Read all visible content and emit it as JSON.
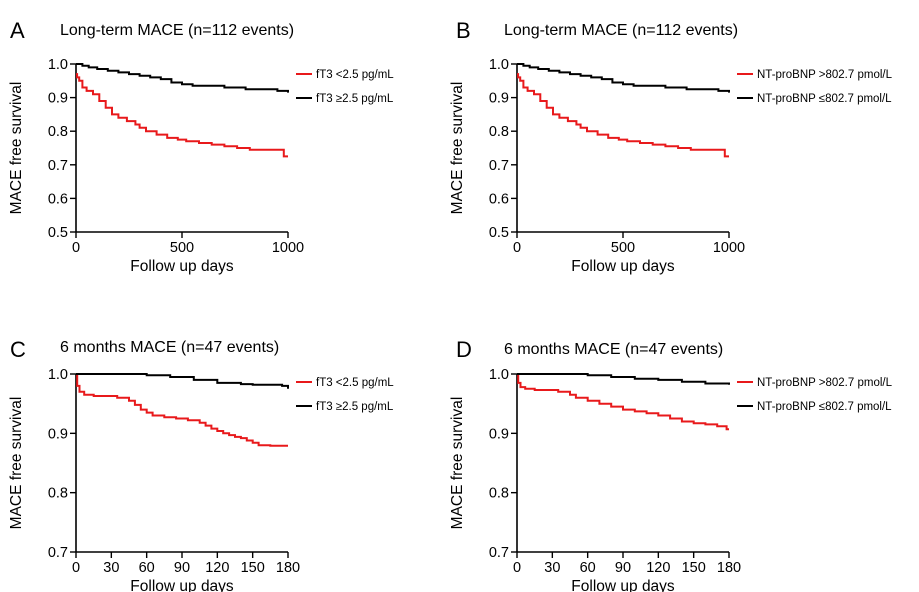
{
  "figure": {
    "series_colors": {
      "red": "#e8191b",
      "black": "#000000"
    }
  },
  "chart_data": [
    {
      "panel": "A",
      "type": "line",
      "step": true,
      "title": "Long-term MACE (n=112 events)",
      "xlabel": "Follow up days",
      "ylabel": "MACE free survival",
      "xlim": [
        0,
        1000
      ],
      "ylim": [
        0.5,
        1.0
      ],
      "xticks": [
        0,
        500,
        1000
      ],
      "yticks": [
        0.5,
        0.6,
        0.7,
        0.8,
        0.9,
        1.0
      ],
      "ytick_labels": [
        "0.5",
        "0.6",
        "0.7",
        "0.8",
        "0.9",
        "1.0"
      ],
      "legend_position": "top-right",
      "series": [
        {
          "name": "fT3 <2.5 pg/mL",
          "color": "#e8191b",
          "x": [
            0,
            5,
            15,
            30,
            50,
            80,
            110,
            140,
            170,
            200,
            240,
            280,
            300,
            330,
            380,
            430,
            480,
            520,
            580,
            640,
            700,
            760,
            820,
            870,
            920,
            960,
            980,
            1000
          ],
          "y": [
            0.97,
            0.96,
            0.95,
            0.93,
            0.92,
            0.91,
            0.89,
            0.87,
            0.85,
            0.84,
            0.83,
            0.82,
            0.81,
            0.8,
            0.79,
            0.78,
            0.775,
            0.77,
            0.765,
            0.76,
            0.755,
            0.75,
            0.745,
            0.745,
            0.745,
            0.745,
            0.725,
            0.725
          ]
        },
        {
          "name": "fT3 ≥2.5 pg/mL",
          "color": "#000000",
          "x": [
            0,
            30,
            60,
            100,
            150,
            200,
            250,
            300,
            350,
            400,
            450,
            500,
            550,
            600,
            700,
            800,
            900,
            950,
            1000
          ],
          "y": [
            1.0,
            0.995,
            0.99,
            0.985,
            0.98,
            0.975,
            0.97,
            0.965,
            0.96,
            0.955,
            0.945,
            0.94,
            0.935,
            0.935,
            0.93,
            0.925,
            0.925,
            0.92,
            0.915
          ]
        }
      ]
    },
    {
      "panel": "B",
      "type": "line",
      "step": true,
      "title": "Long-term MACE (n=112 events)",
      "xlabel": "Follow up days",
      "ylabel": "MACE free survival",
      "xlim": [
        0,
        1000
      ],
      "ylim": [
        0.5,
        1.0
      ],
      "xticks": [
        0,
        500,
        1000
      ],
      "yticks": [
        0.5,
        0.6,
        0.7,
        0.8,
        0.9,
        1.0
      ],
      "ytick_labels": [
        "0.5",
        "0.6",
        "0.7",
        "0.8",
        "0.9",
        "1.0"
      ],
      "legend_position": "top-right",
      "series": [
        {
          "name": "NT-proBNP >802.7 pmol/L",
          "color": "#e8191b",
          "x": [
            0,
            5,
            15,
            30,
            50,
            80,
            110,
            140,
            170,
            200,
            240,
            280,
            300,
            330,
            380,
            430,
            480,
            520,
            580,
            640,
            700,
            760,
            820,
            870,
            920,
            960,
            980,
            1000
          ],
          "y": [
            0.97,
            0.96,
            0.95,
            0.93,
            0.92,
            0.91,
            0.89,
            0.87,
            0.85,
            0.84,
            0.83,
            0.82,
            0.81,
            0.8,
            0.79,
            0.78,
            0.775,
            0.77,
            0.765,
            0.76,
            0.755,
            0.75,
            0.745,
            0.745,
            0.745,
            0.745,
            0.725,
            0.725
          ]
        },
        {
          "name": "NT-proBNP ≤802.7 pmol/L",
          "color": "#000000",
          "x": [
            0,
            30,
            60,
            100,
            150,
            200,
            250,
            300,
            350,
            400,
            450,
            500,
            550,
            600,
            700,
            800,
            900,
            950,
            1000
          ],
          "y": [
            1.0,
            0.995,
            0.99,
            0.985,
            0.98,
            0.975,
            0.97,
            0.965,
            0.96,
            0.955,
            0.945,
            0.94,
            0.935,
            0.935,
            0.93,
            0.925,
            0.925,
            0.92,
            0.915
          ]
        }
      ]
    },
    {
      "panel": "C",
      "type": "line",
      "step": true,
      "title": "6 months MACE (n=47 events)",
      "xlabel": "Follow up days",
      "ylabel": "MACE free survival",
      "xlim": [
        0,
        180
      ],
      "ylim": [
        0.7,
        1.0
      ],
      "xticks": [
        0,
        30,
        60,
        90,
        120,
        150,
        180
      ],
      "yticks": [
        0.7,
        0.8,
        0.9,
        1.0
      ],
      "ytick_labels": [
        "0.7",
        "0.8",
        "0.9",
        "1.0"
      ],
      "legend_position": "top-right",
      "series": [
        {
          "name": "fT3 <2.5 pg/mL",
          "color": "#e8191b",
          "x": [
            0,
            1,
            3,
            7,
            15,
            35,
            45,
            50,
            55,
            60,
            65,
            75,
            85,
            95,
            105,
            110,
            115,
            120,
            125,
            130,
            135,
            140,
            145,
            150,
            155,
            165,
            180
          ],
          "y": [
            1.0,
            0.98,
            0.97,
            0.965,
            0.963,
            0.96,
            0.955,
            0.948,
            0.94,
            0.935,
            0.93,
            0.927,
            0.925,
            0.922,
            0.918,
            0.913,
            0.908,
            0.904,
            0.9,
            0.897,
            0.894,
            0.892,
            0.888,
            0.884,
            0.88,
            0.879,
            0.879
          ]
        },
        {
          "name": "fT3 ≥2.5 pg/mL",
          "color": "#000000",
          "x": [
            0,
            60,
            80,
            100,
            120,
            140,
            150,
            175,
            180
          ],
          "y": [
            1.0,
            0.998,
            0.995,
            0.99,
            0.985,
            0.983,
            0.982,
            0.98,
            0.975
          ]
        }
      ]
    },
    {
      "panel": "D",
      "type": "line",
      "step": true,
      "title": "6 months MACE (n=47 events)",
      "xlabel": "Follow up days",
      "ylabel": "MACE free survival",
      "xlim": [
        0,
        180
      ],
      "ylim": [
        0.7,
        1.0
      ],
      "xticks": [
        0,
        30,
        60,
        90,
        120,
        150,
        180
      ],
      "yticks": [
        0.7,
        0.8,
        0.9,
        1.0
      ],
      "ytick_labels": [
        "0.7",
        "0.8",
        "0.9",
        "1.0"
      ],
      "legend_position": "top-right",
      "series": [
        {
          "name": "NT-proBNP >802.7 pmol/L",
          "color": "#e8191b",
          "x": [
            0,
            1,
            3,
            7,
            15,
            35,
            45,
            50,
            60,
            70,
            80,
            90,
            100,
            110,
            120,
            130,
            140,
            150,
            160,
            170,
            178,
            180
          ],
          "y": [
            1.0,
            0.985,
            0.978,
            0.975,
            0.973,
            0.97,
            0.965,
            0.96,
            0.955,
            0.95,
            0.945,
            0.94,
            0.937,
            0.934,
            0.93,
            0.925,
            0.92,
            0.917,
            0.915,
            0.912,
            0.907,
            0.907
          ]
        },
        {
          "name": "NT-proBNP ≤802.7 pmol/L",
          "color": "#000000",
          "x": [
            0,
            60,
            80,
            100,
            120,
            140,
            160,
            180
          ],
          "y": [
            1.0,
            0.998,
            0.995,
            0.992,
            0.99,
            0.987,
            0.984,
            0.982
          ]
        }
      ]
    }
  ]
}
